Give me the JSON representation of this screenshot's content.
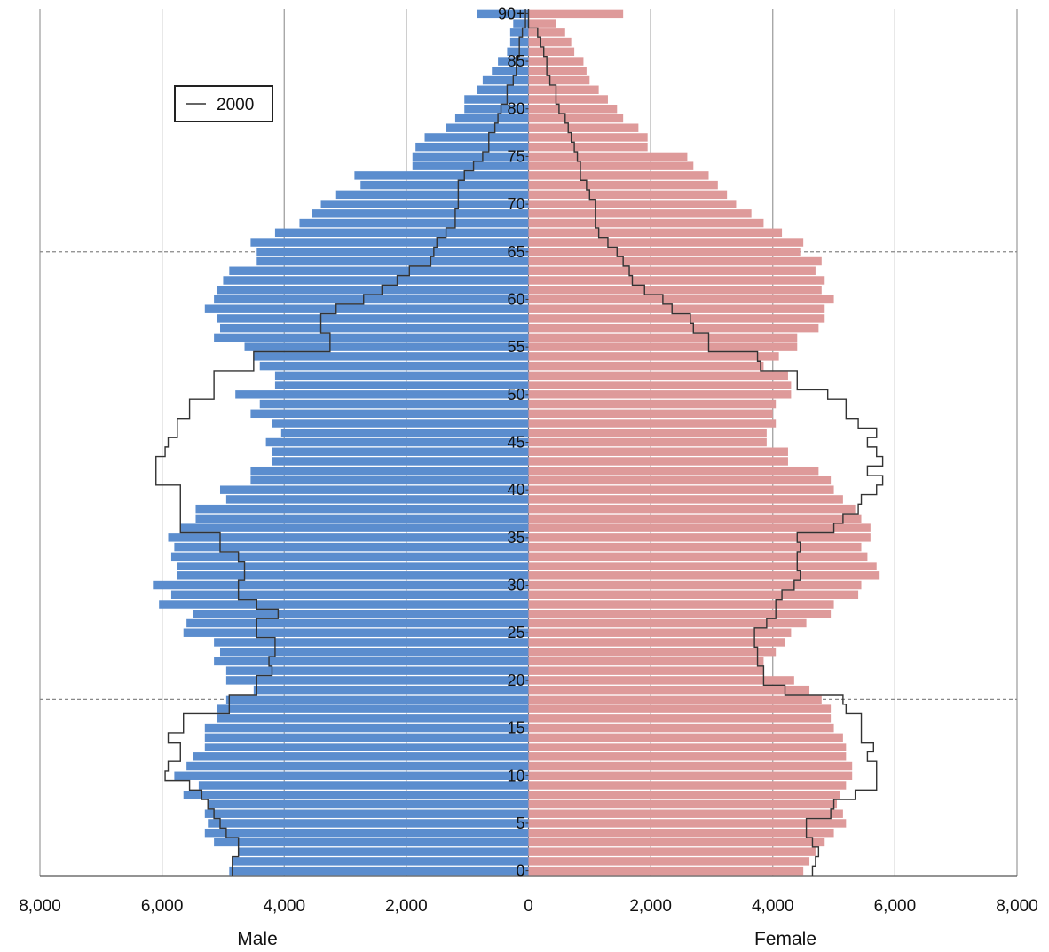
{
  "chart_data": {
    "type": "bar",
    "subtype": "population-pyramid",
    "title": "",
    "xlabel_left": "Male",
    "xlabel_right": "Female",
    "xlim": [
      -8000,
      8000
    ],
    "x_ticks": [
      -8000,
      -6000,
      -4000,
      -2000,
      0,
      2000,
      4000,
      6000,
      8000
    ],
    "x_tick_labels": [
      "8,000",
      "6,000",
      "4,000",
      "2,000",
      "0",
      "2,000",
      "4,000",
      "6,000",
      "8,000"
    ],
    "age_ticks": [
      0,
      5,
      10,
      15,
      20,
      25,
      30,
      35,
      40,
      45,
      50,
      55,
      60,
      65,
      70,
      75,
      80,
      85,
      90
    ],
    "age_tick_labels": [
      "0",
      "5",
      "10",
      "15",
      "20",
      "25",
      "30",
      "35",
      "40",
      "45",
      "50",
      "55",
      "60",
      "65",
      "70",
      "75",
      "80",
      "85",
      "90+"
    ],
    "reference_lines_age": [
      18,
      65
    ],
    "grid": true,
    "legend": {
      "position": "top-left",
      "entries": [
        "2000"
      ]
    },
    "colors": {
      "male": "#5b8dce",
      "female": "#de9a9a",
      "outline_2000": "#333333",
      "grid": "#999999"
    },
    "ages": [
      0,
      1,
      2,
      3,
      4,
      5,
      6,
      7,
      8,
      9,
      10,
      11,
      12,
      13,
      14,
      15,
      16,
      17,
      18,
      19,
      20,
      21,
      22,
      23,
      24,
      25,
      26,
      27,
      28,
      29,
      30,
      31,
      32,
      33,
      34,
      35,
      36,
      37,
      38,
      39,
      40,
      41,
      42,
      43,
      44,
      45,
      46,
      47,
      48,
      49,
      50,
      51,
      52,
      53,
      54,
      55,
      56,
      57,
      58,
      59,
      60,
      61,
      62,
      63,
      64,
      65,
      66,
      67,
      68,
      69,
      70,
      71,
      72,
      73,
      74,
      75,
      76,
      77,
      78,
      79,
      80,
      81,
      82,
      83,
      84,
      85,
      86,
      87,
      88,
      89,
      90
    ],
    "series": [
      {
        "name": "Male",
        "values": [
          4900,
          4850,
          4750,
          5150,
          5300,
          5250,
          5300,
          5250,
          5650,
          5400,
          5800,
          5600,
          5500,
          5300,
          5300,
          5300,
          5100,
          5100,
          4950,
          4500,
          4950,
          4950,
          5150,
          5050,
          5150,
          5650,
          5600,
          5500,
          6050,
          5850,
          6150,
          5750,
          5750,
          5850,
          5800,
          5900,
          5700,
          5450,
          5450,
          4950,
          5050,
          4550,
          4550,
          4200,
          4200,
          4300,
          4050,
          4200,
          4550,
          4400,
          4800,
          4150,
          4150,
          4400,
          4500,
          4650,
          5150,
          5050,
          5100,
          5300,
          5150,
          5100,
          5000,
          4900,
          4450,
          4450,
          4550,
          4150,
          3750,
          3550,
          3400,
          3150,
          2750,
          2850,
          1900,
          1900,
          1850,
          1700,
          1350,
          1200,
          1050,
          1050,
          850,
          750,
          600,
          500,
          350,
          300,
          300,
          250,
          850
        ]
      },
      {
        "name": "Female",
        "values": [
          4500,
          4600,
          4700,
          4850,
          5000,
          5200,
          5150,
          5050,
          5100,
          5200,
          5300,
          5300,
          5200,
          5200,
          5150,
          5000,
          4950,
          4950,
          4800,
          4600,
          4350,
          3850,
          3850,
          4050,
          4200,
          4300,
          4550,
          4950,
          5000,
          5400,
          5450,
          5750,
          5700,
          5550,
          5450,
          5600,
          5600,
          5450,
          5350,
          5150,
          5000,
          4950,
          4750,
          4250,
          4250,
          3900,
          3900,
          4050,
          4000,
          4050,
          4300,
          4300,
          4250,
          3850,
          4100,
          4400,
          4400,
          4750,
          4850,
          4850,
          5000,
          4800,
          4850,
          4700,
          4800,
          4450,
          4500,
          4150,
          3850,
          3650,
          3400,
          3250,
          3100,
          2950,
          2700,
          2600,
          1950,
          1950,
          1800,
          1550,
          1450,
          1300,
          1150,
          1000,
          950,
          900,
          750,
          700,
          600,
          450,
          1550
        ]
      },
      {
        "name": "2000",
        "role": "outline",
        "male": [
          4850,
          4850,
          4750,
          4750,
          4950,
          5050,
          5150,
          5250,
          5350,
          5550,
          5950,
          5900,
          5700,
          5700,
          5900,
          5650,
          5650,
          4900,
          4900,
          4450,
          4450,
          4200,
          4250,
          4150,
          4150,
          4450,
          4450,
          4100,
          4450,
          4750,
          4750,
          4650,
          4650,
          4750,
          5050,
          5050,
          5700,
          5700,
          5700,
          5700,
          5700,
          6100,
          6100,
          6100,
          5950,
          5900,
          5750,
          5750,
          5550,
          5550,
          5150,
          5150,
          5150,
          4500,
          4500,
          3250,
          3250,
          3400,
          3400,
          3150,
          2700,
          2400,
          2150,
          1950,
          1600,
          1550,
          1500,
          1350,
          1200,
          1200,
          1150,
          1150,
          1150,
          1050,
          900,
          750,
          650,
          650,
          550,
          500,
          450,
          350,
          350,
          250,
          200,
          200,
          150,
          150,
          100,
          50,
          50
        ],
        "female": [
          4650,
          4700,
          4750,
          4650,
          4550,
          4550,
          4950,
          5000,
          5350,
          5700,
          5700,
          5700,
          5550,
          5650,
          5450,
          5450,
          5450,
          5200,
          5150,
          4200,
          3850,
          3850,
          3750,
          3750,
          3700,
          3700,
          3900,
          4050,
          4050,
          4150,
          4350,
          4450,
          4400,
          4400,
          4450,
          4400,
          5000,
          5150,
          5400,
          5450,
          5700,
          5800,
          5550,
          5800,
          5700,
          5550,
          5700,
          5400,
          5200,
          5200,
          4900,
          4400,
          4400,
          3800,
          3750,
          2950,
          2950,
          2700,
          2650,
          2350,
          2200,
          1900,
          1700,
          1650,
          1550,
          1450,
          1300,
          1150,
          1100,
          1100,
          1100,
          1000,
          950,
          850,
          850,
          800,
          750,
          700,
          650,
          600,
          500,
          450,
          450,
          350,
          300,
          300,
          250,
          200,
          150,
          0,
          0
        ]
      }
    ]
  }
}
